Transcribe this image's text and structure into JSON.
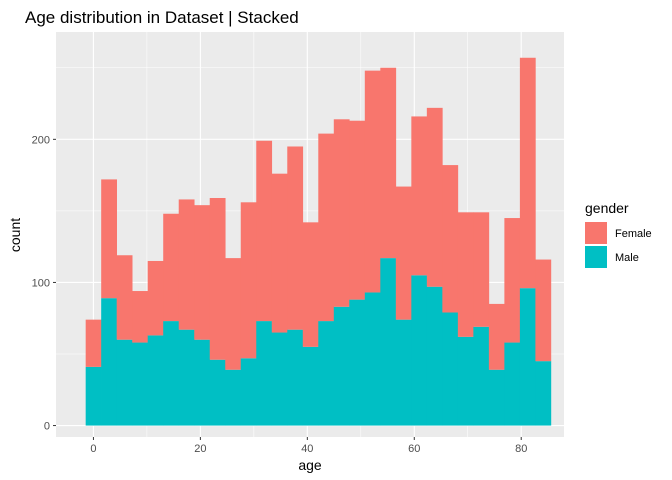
{
  "chart_data": {
    "type": "bar",
    "title": "Age distribution in Dataset | Stacked",
    "xlabel": "age",
    "ylabel": "count",
    "x_ticks": [
      0,
      20,
      40,
      60,
      80
    ],
    "y_ticks": [
      0,
      100,
      200
    ],
    "xlim": [
      -7,
      88
    ],
    "ylim": [
      -8,
      275
    ],
    "bin_width": 2.9,
    "bin_start": -1.45,
    "stacked": true,
    "grid": true,
    "legend_position": "right",
    "legend_title": "gender",
    "series": [
      {
        "name": "Male",
        "color": "#00BFC4",
        "values": [
          41,
          89,
          60,
          58,
          63,
          73,
          67,
          60,
          46,
          39,
          47,
          73,
          65,
          67,
          55,
          73,
          83,
          88,
          93,
          117,
          74,
          105,
          97,
          79,
          62,
          69,
          39,
          58,
          96,
          45
        ]
      },
      {
        "name": "Female",
        "color": "#F8766D",
        "values": [
          33,
          83,
          59,
          36,
          52,
          75,
          91,
          94,
          113,
          78,
          109,
          126,
          111,
          128,
          87,
          131,
          131,
          125,
          155,
          133,
          93,
          111,
          125,
          103,
          87,
          80,
          46,
          87,
          161,
          71
        ]
      }
    ]
  }
}
